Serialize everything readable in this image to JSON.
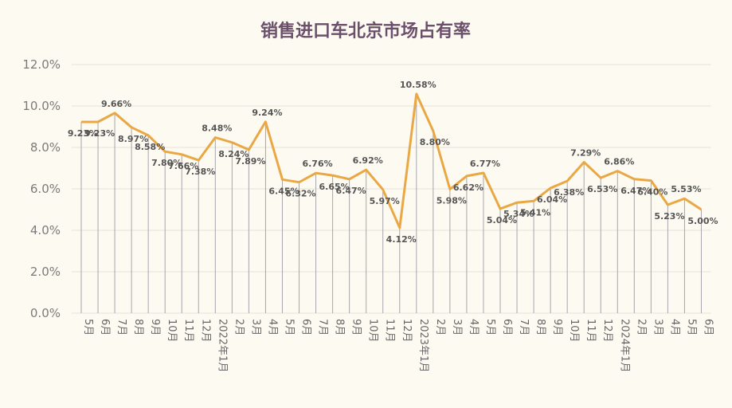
{
  "chart_data": {
    "type": "line",
    "title": "销售进口车北京市场占有率",
    "xlabel": "",
    "ylabel": "",
    "ylim": [
      0,
      12
    ],
    "y_ticks": [
      "0.0%",
      "2.0%",
      "4.0%",
      "6.0%",
      "8.0%",
      "10.0%",
      "12.0%"
    ],
    "grid": true,
    "legend": "none",
    "colors": {
      "line": "#eaa845",
      "drop": "#a6a6ad",
      "grid": "#e4e1d9",
      "title": "#6b4f6b"
    },
    "categories": [
      "5月",
      "6月",
      "7月",
      "8月",
      "9月",
      "10月",
      "11月",
      "12月",
      "2022年1月",
      "2月",
      "3月",
      "4月",
      "5月",
      "6月",
      "7月",
      "8月",
      "9月",
      "10月",
      "11月",
      "12月",
      "2023年1月",
      "2月",
      "3月",
      "4月",
      "5月",
      "6月",
      "7月",
      "8月",
      "9月",
      "10月",
      "11月",
      "12月",
      "2024年1月",
      "2月",
      "3月",
      "4月",
      "5月",
      "6月"
    ],
    "series": [
      {
        "values": [
          9.23,
          9.23,
          9.66,
          8.97,
          8.58,
          7.8,
          7.66,
          7.38,
          8.48,
          8.24,
          7.89,
          9.24,
          6.45,
          6.32,
          6.76,
          6.65,
          6.47,
          6.92,
          5.97,
          4.12,
          10.58,
          8.8,
          5.98,
          6.62,
          6.77,
          5.04,
          5.34,
          5.41,
          6.04,
          6.38,
          7.29,
          6.53,
          6.86,
          6.47,
          6.4,
          5.23,
          5.53,
          5.0
        ],
        "labels": [
          "9.23%",
          "9.23%",
          "9.66%",
          "8.97%",
          "8.58%",
          "7.80%",
          "7.66%",
          "7.38%",
          "8.48%",
          "8.24%",
          "7.89%",
          "9.24%",
          "6.45%",
          "6.32%",
          "6.76%",
          "6.65%",
          "6.47%",
          "6.92%",
          "5.97%",
          "4.12%",
          "10.58%",
          "8.80%",
          "5.98%",
          "6.62%",
          "6.77%",
          "5.04%",
          "5.34%",
          "5.41%",
          "6.04%",
          "6.38%",
          "7.29%",
          "6.53%",
          "6.86%",
          "6.47%",
          "6.40%",
          "5.23%",
          "5.53%",
          "5.00%"
        ]
      }
    ]
  }
}
